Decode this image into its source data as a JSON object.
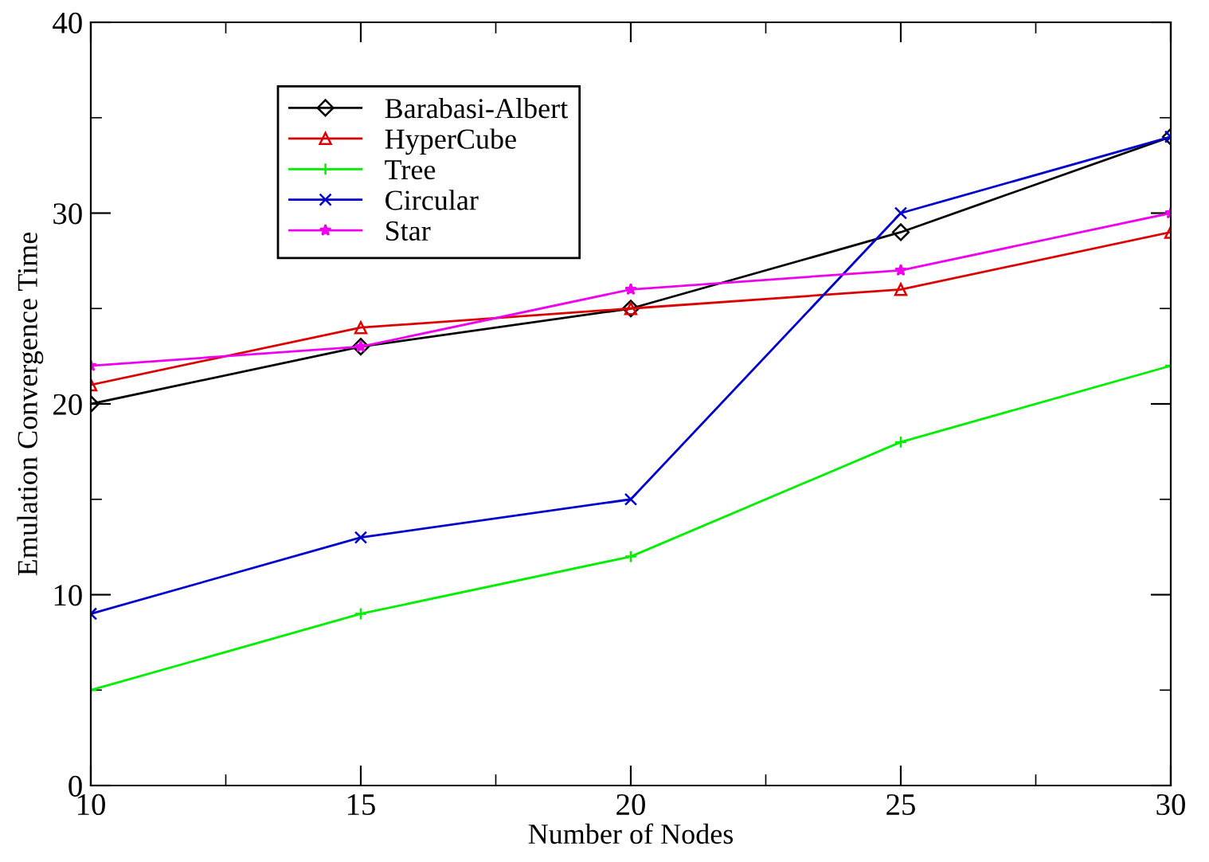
{
  "chart_data": {
    "type": "line",
    "xlabel": "Number of Nodes",
    "ylabel": "Emulation Convergence Time",
    "x": [
      10,
      15,
      20,
      25,
      30
    ],
    "xlim": [
      10,
      30
    ],
    "xticks": [
      10,
      15,
      20,
      25,
      30
    ],
    "ylim": [
      0,
      40
    ],
    "yticks": [
      0,
      10,
      20,
      30,
      40
    ],
    "grid": false,
    "legend": "top left",
    "line_style": "solid",
    "series": [
      {
        "name": "Barabasi-Albert",
        "color": "#000000",
        "marker": "diamond",
        "values": [
          20,
          23,
          25,
          29,
          34
        ]
      },
      {
        "name": "HyperCube",
        "color": "#dd0000",
        "marker": "triangle",
        "values": [
          21,
          24,
          25,
          26,
          29
        ]
      },
      {
        "name": "Tree",
        "color": "#00ee00",
        "marker": "plus",
        "values": [
          5,
          9,
          12,
          18,
          22
        ]
      },
      {
        "name": "Circular",
        "color": "#0000cc",
        "marker": "cross",
        "values": [
          9,
          13,
          15,
          30,
          34
        ]
      },
      {
        "name": "Star",
        "color": "#ee00ee",
        "marker": "star",
        "values": [
          22,
          23,
          26,
          27,
          30
        ]
      }
    ]
  }
}
